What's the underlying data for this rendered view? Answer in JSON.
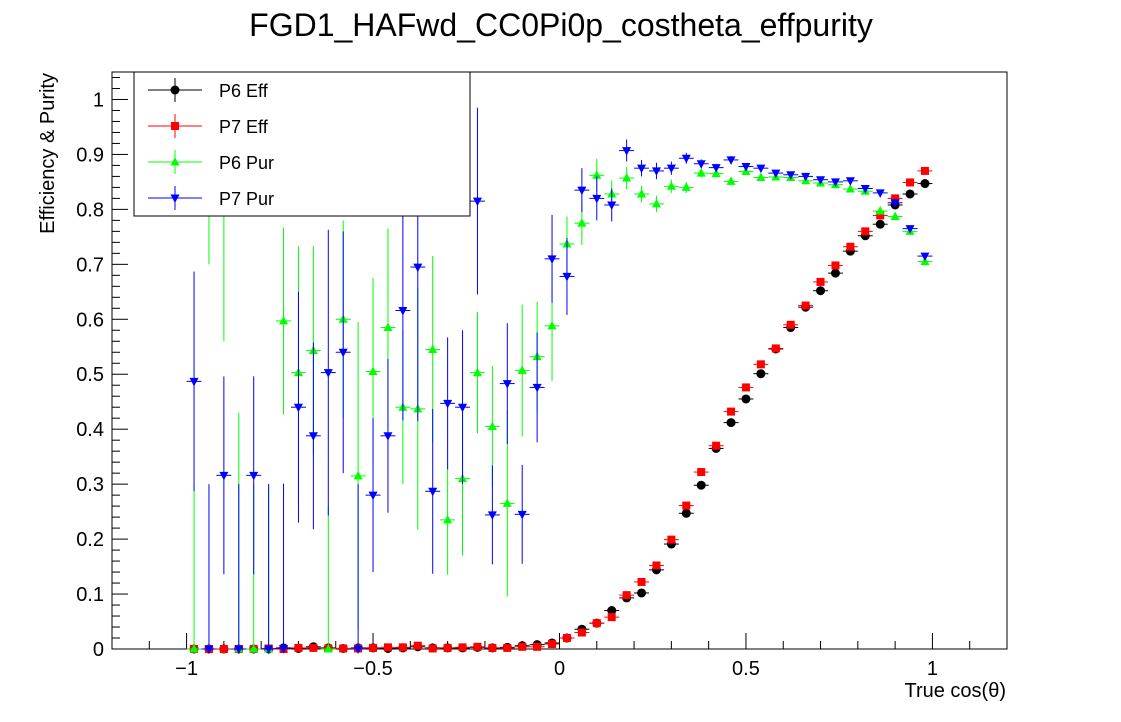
{
  "chart_data": {
    "type": "scatter",
    "title": "FGD1_HAFwd_CC0Pi0p_costheta_effpurity",
    "xlabel": "True cos(θ)",
    "ylabel": "Efficiency & Purity",
    "xlim": [
      -1.2,
      1.2
    ],
    "ylim": [
      0,
      1.05
    ],
    "x_ticks": [
      -1,
      -0.5,
      0,
      0.5,
      1
    ],
    "x_tick_labels": [
      "−1",
      "−0.5",
      "0",
      "0.5",
      "1"
    ],
    "y_ticks": [
      0,
      0.1,
      0.2,
      0.3,
      0.4,
      0.5,
      0.6,
      0.7,
      0.8,
      0.9,
      1
    ],
    "y_tick_labels": [
      "0",
      "0.1",
      "0.2",
      "0.3",
      "0.4",
      "0.5",
      "0.6",
      "0.7",
      "0.8",
      "0.9",
      "1"
    ],
    "grid": false,
    "legend_position": "top-left",
    "bin_half_width": 0.02,
    "series": [
      {
        "name": "P6 Eff",
        "color": "#000000",
        "marker": "circle",
        "points": [
          [
            -0.98,
            0
          ],
          [
            -0.94,
            0
          ],
          [
            -0.9,
            0
          ],
          [
            -0.86,
            0
          ],
          [
            -0.82,
            0
          ],
          [
            -0.78,
            0
          ],
          [
            -0.74,
            0.002
          ],
          [
            -0.7,
            0.001
          ],
          [
            -0.66,
            0.004
          ],
          [
            -0.62,
            0.002
          ],
          [
            -0.58,
            0.001
          ],
          [
            -0.54,
            0.002
          ],
          [
            -0.5,
            0.002
          ],
          [
            -0.46,
            0.001
          ],
          [
            -0.42,
            0.002
          ],
          [
            -0.38,
            0.004
          ],
          [
            -0.34,
            0.002
          ],
          [
            -0.3,
            0.002
          ],
          [
            -0.26,
            0.002
          ],
          [
            -0.22,
            0.003
          ],
          [
            -0.18,
            0.002
          ],
          [
            -0.14,
            0.003
          ],
          [
            -0.1,
            0.006
          ],
          [
            -0.06,
            0.008
          ],
          [
            -0.02,
            0.011
          ],
          [
            0.02,
            0.02
          ],
          [
            0.06,
            0.036
          ],
          [
            0.1,
            0.047
          ],
          [
            0.14,
            0.07
          ],
          [
            0.18,
            0.093
          ],
          [
            0.22,
            0.102
          ],
          [
            0.26,
            0.144
          ],
          [
            0.3,
            0.191
          ],
          [
            0.34,
            0.247
          ],
          [
            0.38,
            0.298
          ],
          [
            0.42,
            0.365
          ],
          [
            0.46,
            0.412
          ],
          [
            0.5,
            0.455
          ],
          [
            0.54,
            0.501
          ],
          [
            0.58,
            0.546
          ],
          [
            0.62,
            0.585
          ],
          [
            0.66,
            0.622
          ],
          [
            0.7,
            0.652
          ],
          [
            0.74,
            0.684
          ],
          [
            0.78,
            0.724
          ],
          [
            0.82,
            0.752
          ],
          [
            0.86,
            0.773
          ],
          [
            0.9,
            0.808
          ],
          [
            0.94,
            0.828
          ],
          [
            0.98,
            0.847
          ]
        ]
      },
      {
        "name": "P7 Eff",
        "color": "#ff0000",
        "marker": "square",
        "points": [
          [
            -0.98,
            0
          ],
          [
            -0.94,
            0
          ],
          [
            -0.9,
            0
          ],
          [
            -0.86,
            0
          ],
          [
            -0.82,
            0
          ],
          [
            -0.78,
            0.001
          ],
          [
            -0.74,
            0
          ],
          [
            -0.7,
            0.002
          ],
          [
            -0.66,
            0.002
          ],
          [
            -0.62,
            0.001
          ],
          [
            -0.58,
            0.001
          ],
          [
            -0.54,
            0.001
          ],
          [
            -0.5,
            0.002
          ],
          [
            -0.46,
            0.003
          ],
          [
            -0.42,
            0.003
          ],
          [
            -0.38,
            0.006
          ],
          [
            -0.34,
            0.001
          ],
          [
            -0.3,
            0.002
          ],
          [
            -0.26,
            0.003
          ],
          [
            -0.22,
            0.004
          ],
          [
            -0.18,
            0.002
          ],
          [
            -0.14,
            0.002
          ],
          [
            -0.1,
            0.004
          ],
          [
            -0.06,
            0.004
          ],
          [
            -0.02,
            0.009
          ],
          [
            0.02,
            0.02
          ],
          [
            0.06,
            0.03
          ],
          [
            0.1,
            0.047
          ],
          [
            0.14,
            0.058
          ],
          [
            0.18,
            0.098
          ],
          [
            0.22,
            0.122
          ],
          [
            0.26,
            0.152
          ],
          [
            0.3,
            0.199
          ],
          [
            0.34,
            0.261
          ],
          [
            0.38,
            0.322
          ],
          [
            0.42,
            0.37
          ],
          [
            0.46,
            0.432
          ],
          [
            0.5,
            0.476
          ],
          [
            0.54,
            0.518
          ],
          [
            0.58,
            0.547
          ],
          [
            0.62,
            0.59
          ],
          [
            0.66,
            0.625
          ],
          [
            0.7,
            0.668
          ],
          [
            0.74,
            0.698
          ],
          [
            0.78,
            0.732
          ],
          [
            0.82,
            0.76
          ],
          [
            0.86,
            0.789
          ],
          [
            0.9,
            0.82
          ],
          [
            0.94,
            0.849
          ],
          [
            0.98,
            0.87
          ]
        ]
      },
      {
        "name": "P6 Pur",
        "color": "#00ff00",
        "marker": "triangle-up",
        "points": [
          [
            -0.98,
            0,
            0.3
          ],
          [
            -0.94,
            0.99,
            0.29
          ],
          [
            -0.9,
            0.85,
            0.29
          ],
          [
            -0.86,
            0,
            0.43
          ],
          [
            -0.82,
            0,
            0.3
          ],
          [
            -0.78,
            0,
            0.3
          ],
          [
            -0.74,
            0.597,
            0.17
          ],
          [
            -0.7,
            0.503,
            0.23
          ],
          [
            -0.66,
            0.543,
            0.19
          ],
          [
            -0.62,
            0,
            0.26
          ],
          [
            -0.58,
            0.6,
            0.18
          ],
          [
            -0.54,
            0.315,
            0.28
          ],
          [
            -0.5,
            0.505,
            0.17
          ],
          [
            -0.46,
            0.585,
            0.18
          ],
          [
            -0.42,
            0.44,
            0.14
          ],
          [
            -0.38,
            0.437,
            0.22
          ],
          [
            -0.34,
            0.545,
            0.17
          ],
          [
            -0.3,
            0.235,
            0.1
          ],
          [
            -0.26,
            0.31,
            0.14
          ],
          [
            -0.22,
            0.503,
            0.11
          ],
          [
            -0.18,
            0.405,
            0.11
          ],
          [
            -0.14,
            0.265,
            0.17
          ],
          [
            -0.1,
            0.507,
            0.12
          ],
          [
            -0.06,
            0.532,
            0.1
          ],
          [
            -0.02,
            0.588,
            0.1
          ],
          [
            0.02,
            0.737,
            0.05
          ],
          [
            0.06,
            0.775,
            0.04
          ],
          [
            0.1,
            0.862,
            0.03
          ],
          [
            0.14,
            0.828,
            0.025
          ],
          [
            0.18,
            0.857,
            0.02
          ],
          [
            0.22,
            0.828,
            0.015
          ],
          [
            0.26,
            0.81,
            0.015
          ],
          [
            0.3,
            0.842,
            0.012
          ],
          [
            0.34,
            0.84,
            0.01
          ],
          [
            0.38,
            0.866,
            0.008
          ],
          [
            0.42,
            0.865,
            0.007
          ],
          [
            0.46,
            0.851,
            0.007
          ],
          [
            0.5,
            0.869,
            0.006
          ],
          [
            0.54,
            0.858,
            0.005
          ],
          [
            0.58,
            0.859,
            0.005
          ],
          [
            0.62,
            0.858,
            0.005
          ],
          [
            0.66,
            0.852,
            0.005
          ],
          [
            0.7,
            0.848,
            0.005
          ],
          [
            0.74,
            0.845,
            0.005
          ],
          [
            0.78,
            0.837,
            0.005
          ],
          [
            0.82,
            0.833,
            0.005
          ],
          [
            0.86,
            0.797,
            0.005
          ],
          [
            0.9,
            0.787,
            0.005
          ],
          [
            0.94,
            0.76,
            0.005
          ],
          [
            0.98,
            0.705,
            0.005
          ]
        ]
      },
      {
        "name": "P7 Pur",
        "color": "#0000ff",
        "marker": "triangle-down",
        "points": [
          [
            -0.98,
            0.487,
            0.2
          ],
          [
            -0.94,
            0,
            0.3
          ],
          [
            -0.9,
            0.316,
            0.18
          ],
          [
            -0.86,
            0,
            0.3
          ],
          [
            -0.82,
            0.316,
            0.18
          ],
          [
            -0.78,
            0,
            0.3
          ],
          [
            -0.74,
            0.001,
            0.3
          ],
          [
            -0.7,
            0.44,
            0.21
          ],
          [
            -0.66,
            0.388,
            0.17
          ],
          [
            -0.62,
            0.503,
            0.26
          ],
          [
            -0.58,
            0.54,
            0.22
          ],
          [
            -0.54,
            0,
            0.3
          ],
          [
            -0.5,
            0.28,
            0.14
          ],
          [
            -0.46,
            0.388,
            0.14
          ],
          [
            -0.42,
            0.616,
            0.2
          ],
          [
            -0.38,
            0.695,
            0.28
          ],
          [
            -0.34,
            0.287,
            0.15
          ],
          [
            -0.3,
            0.447,
            0.12
          ],
          [
            -0.26,
            0.44,
            0.14
          ],
          [
            -0.22,
            0.815,
            0.17
          ],
          [
            -0.18,
            0.244,
            0.09
          ],
          [
            -0.14,
            0.483,
            0.11
          ],
          [
            -0.1,
            0.245,
            0.09
          ],
          [
            -0.06,
            0.476,
            0.1
          ],
          [
            -0.02,
            0.71,
            0.08
          ],
          [
            0.02,
            0.678,
            0.07
          ],
          [
            0.06,
            0.835,
            0.04
          ],
          [
            0.1,
            0.82,
            0.04
          ],
          [
            0.14,
            0.808,
            0.03
          ],
          [
            0.18,
            0.907,
            0.02
          ],
          [
            0.22,
            0.875,
            0.015
          ],
          [
            0.26,
            0.87,
            0.015
          ],
          [
            0.3,
            0.875,
            0.012
          ],
          [
            0.34,
            0.893,
            0.01
          ],
          [
            0.38,
            0.883,
            0.008
          ],
          [
            0.42,
            0.876,
            0.007
          ],
          [
            0.46,
            0.89,
            0.007
          ],
          [
            0.5,
            0.878,
            0.006
          ],
          [
            0.54,
            0.875,
            0.005
          ],
          [
            0.58,
            0.866,
            0.005
          ],
          [
            0.62,
            0.863,
            0.005
          ],
          [
            0.66,
            0.86,
            0.005
          ],
          [
            0.7,
            0.854,
            0.005
          ],
          [
            0.74,
            0.85,
            0.005
          ],
          [
            0.78,
            0.852,
            0.005
          ],
          [
            0.82,
            0.838,
            0.005
          ],
          [
            0.86,
            0.83,
            0.005
          ],
          [
            0.9,
            0.812,
            0.005
          ],
          [
            0.94,
            0.765,
            0.005
          ],
          [
            0.98,
            0.715,
            0.005
          ]
        ]
      }
    ]
  }
}
